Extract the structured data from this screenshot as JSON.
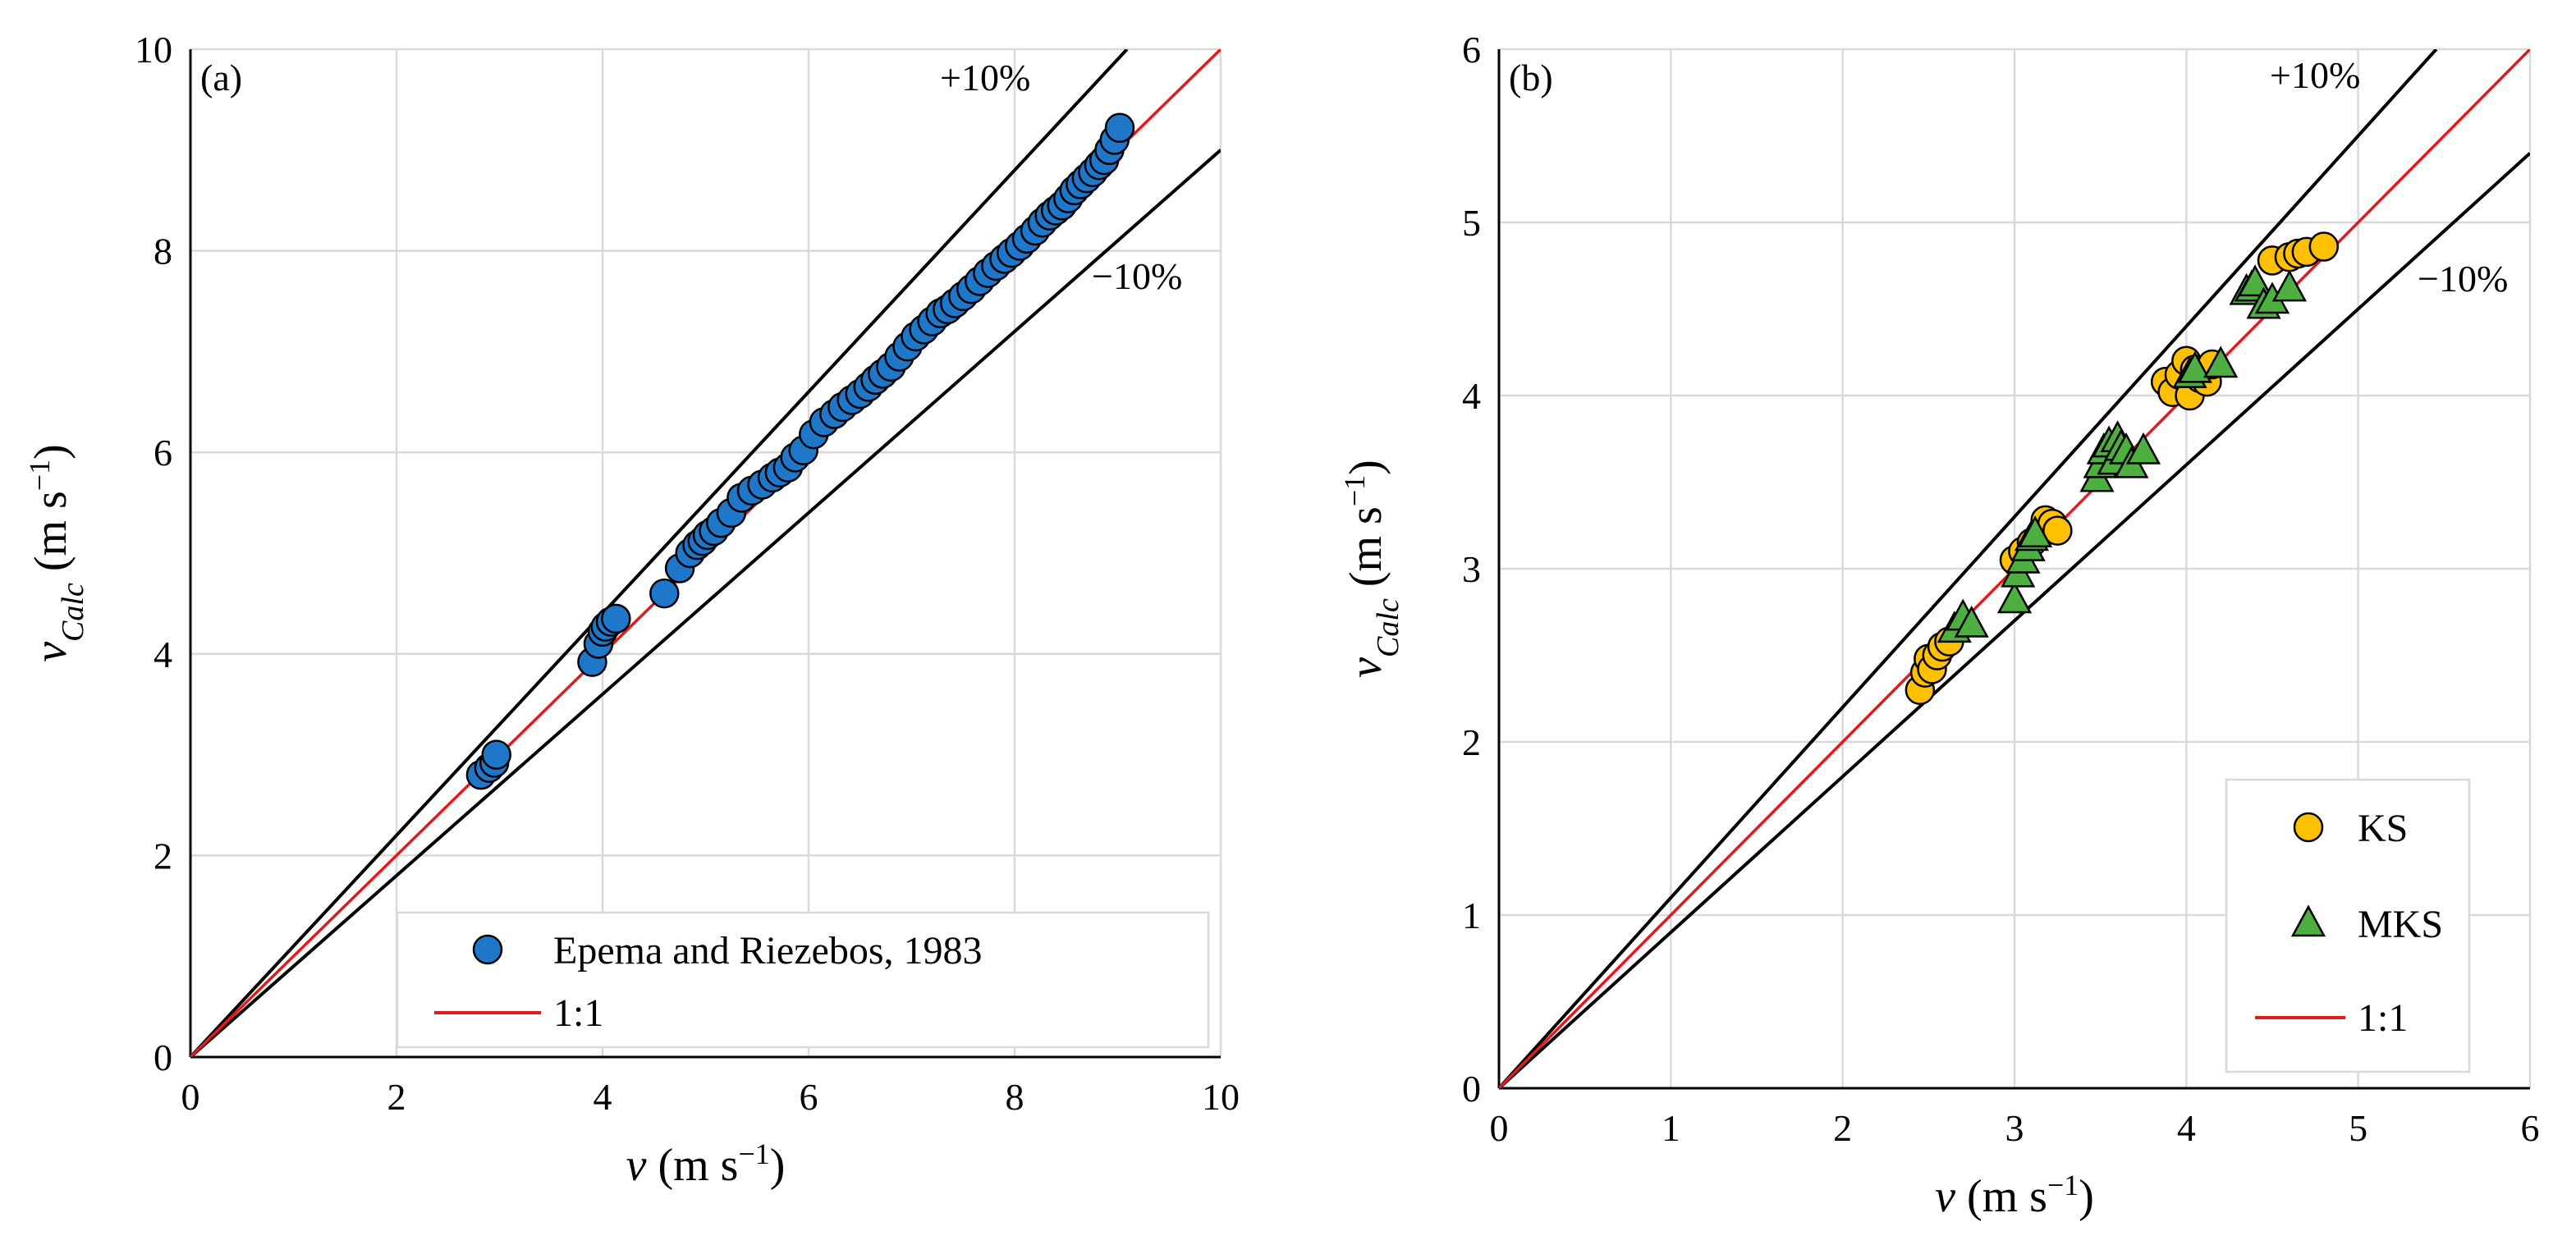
{
  "chart_data": [
    {
      "type": "scatter",
      "panel_label": "(a)",
      "xlabel_main": "v",
      "xlabel_units": "(m s",
      "ylabel_main": "v",
      "ylabel_sub": "Calc",
      "ylabel_units": "(m s",
      "unit_exponent": "−1",
      "unit_close": ")",
      "xlim": [
        0,
        10
      ],
      "ylim": [
        0,
        10
      ],
      "xticks": [
        "0",
        "2",
        "4",
        "6",
        "8",
        "10"
      ],
      "yticks": [
        "0",
        "2",
        "4",
        "6",
        "8",
        "10"
      ],
      "grid": true,
      "legend_position": "bottom-right",
      "band_labels": {
        "upper": "+10%",
        "lower": "−10%"
      },
      "reference_lines": {
        "one_to_one_label": "1:1",
        "upper_factor": 1.1,
        "lower_factor": 0.9
      },
      "colors": {
        "marker": "#1F77C9",
        "one_to_one": "#E31A1C",
        "band": "#000000",
        "grid": "#D9D9D9"
      },
      "series": [
        {
          "name": "Epema and Riezebos, 1983",
          "marker": "circle",
          "x": [
            2.82,
            2.9,
            2.95,
            2.97,
            3.9,
            3.96,
            4.0,
            4.03,
            4.08,
            4.13,
            4.6,
            4.75,
            4.85,
            4.92,
            4.97,
            5.02,
            5.08,
            5.15,
            5.25,
            5.35,
            5.45,
            5.55,
            5.65,
            5.72,
            5.8,
            5.87,
            5.95,
            6.05,
            6.15,
            6.25,
            6.33,
            6.42,
            6.5,
            6.58,
            6.65,
            6.72,
            6.8,
            6.88,
            6.96,
            7.04,
            7.12,
            7.2,
            7.28,
            7.35,
            7.42,
            7.5,
            7.58,
            7.66,
            7.74,
            7.82,
            7.9,
            7.97,
            8.05,
            8.12,
            8.2,
            8.27,
            8.34,
            8.4,
            8.46,
            8.52,
            8.58,
            8.64,
            8.7,
            8.76,
            8.82,
            8.87,
            8.92,
            8.97,
            9.02
          ],
          "y": [
            2.8,
            2.87,
            2.92,
            3.0,
            3.92,
            4.1,
            4.22,
            4.27,
            4.32,
            4.35,
            4.6,
            4.85,
            5.0,
            5.08,
            5.12,
            5.18,
            5.22,
            5.3,
            5.4,
            5.55,
            5.62,
            5.68,
            5.75,
            5.8,
            5.85,
            5.95,
            6.02,
            6.18,
            6.3,
            6.38,
            6.45,
            6.52,
            6.58,
            6.65,
            6.72,
            6.78,
            6.85,
            6.95,
            7.05,
            7.15,
            7.22,
            7.3,
            7.38,
            7.42,
            7.48,
            7.55,
            7.62,
            7.7,
            7.78,
            7.85,
            7.92,
            7.98,
            8.05,
            8.12,
            8.2,
            8.28,
            8.35,
            8.4,
            8.45,
            8.52,
            8.6,
            8.66,
            8.72,
            8.78,
            8.85,
            8.9,
            9.0,
            9.1,
            9.22
          ]
        }
      ]
    },
    {
      "type": "scatter",
      "panel_label": "(b)",
      "xlabel_main": "v",
      "xlabel_units": "(m s",
      "ylabel_main": "v",
      "ylabel_sub": "Calc",
      "ylabel_units": "(m s",
      "unit_exponent": "−1",
      "unit_close": ")",
      "xlim": [
        0,
        6
      ],
      "ylim": [
        0,
        6
      ],
      "xticks": [
        "0",
        "1",
        "2",
        "3",
        "4",
        "5",
        "6"
      ],
      "yticks": [
        "0",
        "1",
        "2",
        "3",
        "4",
        "5",
        "6"
      ],
      "grid": true,
      "legend_position": "bottom-right",
      "band_labels": {
        "upper": "+10%",
        "lower": "−10%"
      },
      "reference_lines": {
        "one_to_one_label": "1:1",
        "upper_factor": 1.1,
        "lower_factor": 0.9
      },
      "colors": {
        "ks": "#FFC000",
        "mks": "#4CAF3F",
        "one_to_one": "#E31A1C",
        "band": "#000000",
        "grid": "#D9D9D9"
      },
      "series": [
        {
          "name": "KS",
          "marker": "circle",
          "x": [
            2.45,
            2.48,
            2.5,
            2.52,
            2.55,
            2.58,
            2.62,
            3.0,
            3.05,
            3.1,
            3.15,
            3.18,
            3.22,
            3.25,
            3.88,
            3.92,
            3.96,
            4.0,
            4.02,
            4.05,
            4.08,
            4.12,
            4.15,
            4.5,
            4.6,
            4.65,
            4.7,
            4.8
          ],
          "y": [
            2.3,
            2.4,
            2.48,
            2.42,
            2.5,
            2.55,
            2.58,
            3.05,
            3.1,
            3.15,
            3.2,
            3.28,
            3.26,
            3.22,
            4.08,
            4.02,
            4.12,
            4.2,
            4.0,
            4.15,
            4.1,
            4.08,
            4.18,
            4.78,
            4.8,
            4.82,
            4.83,
            4.86
          ]
        },
        {
          "name": "MKS",
          "marker": "triangle",
          "x": [
            2.65,
            2.7,
            2.75,
            3.0,
            3.02,
            3.05,
            3.08,
            3.1,
            3.12,
            3.48,
            3.5,
            3.52,
            3.55,
            3.58,
            3.6,
            3.62,
            3.65,
            3.68,
            3.75,
            4.02,
            4.05,
            4.2,
            4.35,
            4.38,
            4.4,
            4.45,
            4.5,
            4.6
          ],
          "y": [
            2.65,
            2.72,
            2.68,
            2.82,
            2.97,
            3.05,
            3.12,
            3.18,
            3.2,
            3.52,
            3.6,
            3.68,
            3.72,
            3.62,
            3.75,
            3.7,
            3.68,
            3.6,
            3.68,
            4.12,
            4.15,
            4.18,
            4.6,
            4.62,
            4.65,
            4.52,
            4.55,
            4.62
          ]
        }
      ]
    }
  ]
}
